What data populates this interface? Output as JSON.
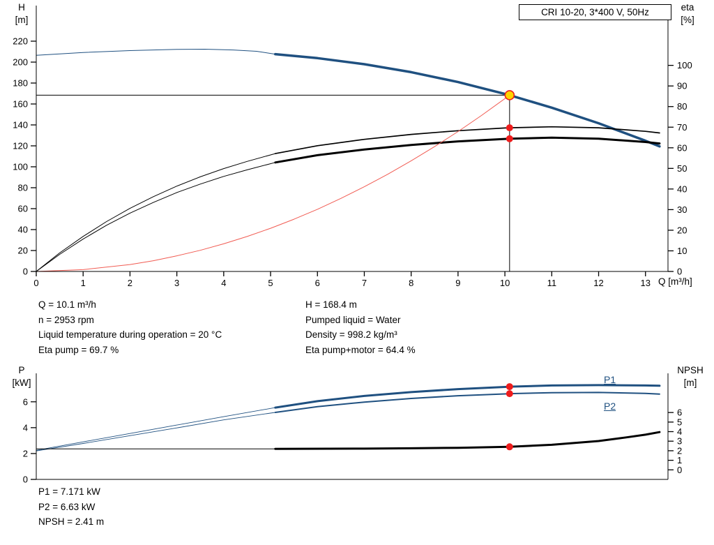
{
  "title_box": {
    "label": "CRI 10-20, 3*400 V, 50Hz"
  },
  "colors": {
    "blue": "#1f5080",
    "red": "#ee1c1c",
    "red_light": "#f15b52",
    "yellow": "#ffd400",
    "black": "#000000"
  },
  "info_top": {
    "col1": [
      "Q = 10.1 m³/h",
      "n = 2953 rpm",
      "Liquid temperature during operation = 20 °C",
      "Eta pump = 69.7 %"
    ],
    "col2": [
      "H = 168.4 m",
      "Pumped liquid = Water",
      "Density = 998.2 kg/m³",
      "Eta pump+motor = 64.4 %"
    ]
  },
  "info_bottom": [
    "P1 = 7.171 kW",
    "P2 = 6.63 kW",
    "NPSH = 2.41 m"
  ],
  "curve_labels": {
    "p1": "P1",
    "p2": "P2"
  },
  "duty_point": {
    "Q": 10.1,
    "H": 168.4,
    "eta_pump": 69.7,
    "eta_pump_motor": 64.4,
    "P1": 7.171,
    "P2": 6.63,
    "NPSH": 2.41
  },
  "chart_data": [
    {
      "id": "top",
      "type": "line",
      "title": "CRI 10-20, 3*400 V, 50Hz",
      "x_axis": {
        "label": "Q [m³/h]",
        "min": 0,
        "max": 13.48,
        "ticks": [
          0,
          1,
          2,
          3,
          4,
          5,
          6,
          7,
          8,
          9,
          10,
          11,
          12,
          13
        ]
      },
      "left_axis": {
        "name": "H",
        "unit": "[m]",
        "min": 0,
        "max": 254,
        "ticks": [
          0,
          20,
          40,
          60,
          80,
          100,
          120,
          140,
          160,
          180,
          200,
          220
        ]
      },
      "right_axis": {
        "name": "eta",
        "unit": "[%]",
        "min": 0,
        "max": 129,
        "ticks": [
          0,
          10,
          20,
          30,
          40,
          50,
          60,
          70,
          80,
          90,
          100
        ]
      },
      "grid": false,
      "crosshair": {
        "q": 10.1,
        "v": 168.4
      },
      "series": [
        {
          "name": "head-curve-extended",
          "axis": "left",
          "color": "blue",
          "width": 1,
          "points": [
            [
              0,
              206.5
            ],
            [
              1,
              209.2
            ],
            [
              2,
              211.0
            ],
            [
              3,
              212.1
            ],
            [
              3.6,
              212.3
            ],
            [
              4.2,
              211.6
            ],
            [
              4.7,
              210.3
            ],
            [
              5.1,
              207.6
            ]
          ]
        },
        {
          "name": "head-curve",
          "axis": "left",
          "color": "blue",
          "width": 3.5,
          "points": [
            [
              5.1,
              207.6
            ],
            [
              6,
              203.8
            ],
            [
              7,
              198.0
            ],
            [
              8,
              190.4
            ],
            [
              9,
              180.9
            ],
            [
              10,
              169.6
            ],
            [
              10.1,
              168.4
            ],
            [
              11,
              156.5
            ],
            [
              12,
              141.6
            ],
            [
              13,
              124.9
            ],
            [
              13.3,
              119.5
            ]
          ]
        },
        {
          "name": "eta-pump-extended",
          "axis": "right",
          "color": "black",
          "width": 1,
          "points": [
            [
              0,
              0
            ],
            [
              0.5,
              9
            ],
            [
              1,
              17
            ],
            [
              1.5,
              24.2
            ],
            [
              2,
              30.6
            ],
            [
              2.5,
              36.3
            ],
            [
              3,
              41.4
            ],
            [
              3.5,
              45.9
            ],
            [
              4,
              49.9
            ],
            [
              4.5,
              53.4
            ],
            [
              5.1,
              57.2
            ]
          ]
        },
        {
          "name": "eta-pump",
          "axis": "right",
          "color": "black",
          "width": 1.7,
          "points": [
            [
              5.1,
              57.2
            ],
            [
              6,
              61.0
            ],
            [
              7,
              64.1
            ],
            [
              8,
              66.5
            ],
            [
              9,
              68.3
            ],
            [
              10,
              69.6
            ],
            [
              10.1,
              69.7
            ],
            [
              11,
              70.2
            ],
            [
              12,
              69.7
            ],
            [
              13,
              68.0
            ],
            [
              13.3,
              67.2
            ]
          ]
        },
        {
          "name": "eta-pump-motor-extended",
          "axis": "right",
          "color": "black",
          "width": 1,
          "points": [
            [
              0,
              0
            ],
            [
              0.5,
              8.3
            ],
            [
              1,
              15.7
            ],
            [
              1.5,
              22.4
            ],
            [
              2,
              28.3
            ],
            [
              2.5,
              33.5
            ],
            [
              3,
              38.3
            ],
            [
              3.5,
              42.4
            ],
            [
              4,
              46.1
            ],
            [
              4.5,
              49.3
            ],
            [
              5.1,
              52.9
            ]
          ]
        },
        {
          "name": "eta-pump-motor",
          "axis": "right",
          "color": "black",
          "width": 3,
          "points": [
            [
              5.1,
              52.9
            ],
            [
              6,
              56.4
            ],
            [
              7,
              59.2
            ],
            [
              8,
              61.4
            ],
            [
              9,
              63.1
            ],
            [
              10,
              64.3
            ],
            [
              10.1,
              64.4
            ],
            [
              11,
              64.9
            ],
            [
              12,
              64.4
            ],
            [
              13,
              62.8
            ],
            [
              13.3,
              62.1
            ]
          ]
        },
        {
          "name": "system-curve",
          "axis": "left",
          "color": "red_light",
          "width": 1,
          "points": [
            [
              0,
              0
            ],
            [
              1,
              1.7
            ],
            [
              2,
              6.6
            ],
            [
              2.5,
              10.3
            ],
            [
              3,
              14.9
            ],
            [
              3.5,
              20.2
            ],
            [
              4,
              26.4
            ],
            [
              4.5,
              33.4
            ],
            [
              5,
              41.3
            ],
            [
              5.5,
              49.9
            ],
            [
              6,
              59.4
            ],
            [
              6.5,
              69.8
            ],
            [
              7,
              80.9
            ],
            [
              7.5,
              92.9
            ],
            [
              8,
              105.7
            ],
            [
              8.5,
              119.3
            ],
            [
              9,
              133.7
            ],
            [
              9.5,
              149.0
            ],
            [
              10,
              165.1
            ],
            [
              10.1,
              168.4
            ]
          ]
        }
      ],
      "markers": [
        {
          "name": "duty-point",
          "q": 10.1,
          "v": 168.4,
          "axis": "left",
          "fill": "yellow",
          "stroke": "red",
          "r": 6.5
        },
        {
          "name": "eta-pump-point",
          "q": 10.1,
          "v": 69.7,
          "axis": "right",
          "fill": "red",
          "r": 5
        },
        {
          "name": "eta-pump-motor-point",
          "q": 10.1,
          "v": 64.4,
          "axis": "right",
          "fill": "red",
          "r": 5
        }
      ]
    },
    {
      "id": "bottom",
      "type": "line",
      "x_axis": {
        "label": "",
        "min": 0,
        "max": 13.48,
        "ticks": []
      },
      "left_axis": {
        "name": "P",
        "unit": "[kW]",
        "min": 0,
        "max": 8.2,
        "ticks": [
          0,
          2,
          4,
          6
        ]
      },
      "right_axis": {
        "name": "NPSH",
        "unit": "[m]",
        "min": -1,
        "max": 10.1,
        "ticks": [
          0,
          1,
          2,
          3,
          4,
          5,
          6
        ]
      },
      "grid": false,
      "series": [
        {
          "name": "p1-curve-extended",
          "axis": "left",
          "color": "blue",
          "width": 0.9,
          "points": [
            [
              0,
              2.25
            ],
            [
              1,
              2.9
            ],
            [
              2,
              3.55
            ],
            [
              3,
              4.2
            ],
            [
              4,
              4.85
            ],
            [
              5.1,
              5.55
            ]
          ]
        },
        {
          "name": "p1-curve",
          "axis": "left",
          "color": "blue",
          "width": 3,
          "points": [
            [
              5.1,
              5.55
            ],
            [
              6,
              6.05
            ],
            [
              7,
              6.45
            ],
            [
              8,
              6.75
            ],
            [
              9,
              6.98
            ],
            [
              10,
              7.15
            ],
            [
              10.1,
              7.171
            ],
            [
              11,
              7.26
            ],
            [
              12,
              7.29
            ],
            [
              13,
              7.26
            ],
            [
              13.3,
              7.24
            ]
          ]
        },
        {
          "name": "p2-curve-extended",
          "axis": "left",
          "color": "blue",
          "width": 0.9,
          "points": [
            [
              0,
              2.2
            ],
            [
              1,
              2.78
            ],
            [
              2,
              3.38
            ],
            [
              3,
              3.98
            ],
            [
              4,
              4.6
            ],
            [
              5.1,
              5.18
            ]
          ]
        },
        {
          "name": "p2-curve",
          "axis": "left",
          "color": "blue",
          "width": 2,
          "points": [
            [
              5.1,
              5.18
            ],
            [
              6,
              5.62
            ],
            [
              7,
              5.98
            ],
            [
              8,
              6.26
            ],
            [
              9,
              6.47
            ],
            [
              10,
              6.61
            ],
            [
              10.1,
              6.63
            ],
            [
              11,
              6.7
            ],
            [
              12,
              6.72
            ],
            [
              13,
              6.65
            ],
            [
              13.3,
              6.6
            ]
          ]
        },
        {
          "name": "npsh-curve-extended",
          "axis": "right",
          "color": "black",
          "width": 1,
          "points": [
            [
              0,
              2.2
            ],
            [
              5.1,
              2.2
            ]
          ]
        },
        {
          "name": "npsh-curve",
          "axis": "right",
          "color": "black",
          "width": 3,
          "points": [
            [
              5.1,
              2.2
            ],
            [
              7,
              2.22
            ],
            [
              8,
              2.26
            ],
            [
              9,
              2.31
            ],
            [
              10,
              2.4
            ],
            [
              10.1,
              2.41
            ],
            [
              11,
              2.62
            ],
            [
              12,
              3.02
            ],
            [
              12.6,
              3.4
            ],
            [
              13,
              3.68
            ],
            [
              13.3,
              3.95
            ]
          ]
        }
      ],
      "markers": [
        {
          "name": "p1-point",
          "q": 10.1,
          "v": 7.171,
          "axis": "left",
          "fill": "red",
          "r": 5
        },
        {
          "name": "p2-point",
          "q": 10.1,
          "v": 6.63,
          "axis": "left",
          "fill": "red",
          "r": 5
        },
        {
          "name": "npsh-point",
          "q": 10.1,
          "v": 2.41,
          "axis": "right",
          "fill": "red",
          "r": 5
        }
      ]
    }
  ]
}
